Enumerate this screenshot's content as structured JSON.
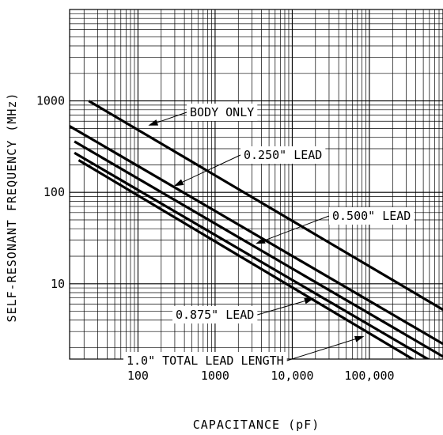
{
  "chart_data": {
    "type": "line",
    "title": "",
    "xlabel": "CAPACITANCE (pF)",
    "ylabel": "SELF-RESONANT FREQUENCY (MHz)",
    "x_scale": "log",
    "y_scale": "log",
    "xlim": [
      13,
      900000
    ],
    "ylim": [
      1.5,
      10000
    ],
    "grid": true,
    "x_ticks": [
      {
        "value": 100,
        "label": "100"
      },
      {
        "value": 1000,
        "label": "1000"
      },
      {
        "value": 10000,
        "label": "10,000"
      },
      {
        "value": 100000,
        "label": "100,000"
      }
    ],
    "y_ticks": [
      {
        "value": 10,
        "label": "10"
      },
      {
        "value": 100,
        "label": "100"
      },
      {
        "value": 1000,
        "label": "1000"
      }
    ],
    "series": [
      {
        "name": "BODY ONLY",
        "x": [
          23,
          900000
        ],
        "y": [
          1000,
          5.2
        ]
      },
      {
        "name": "0.250\" LEAD",
        "x": [
          13,
          900000
        ],
        "y": [
          530,
          2.2
        ]
      },
      {
        "name": "0.500\" LEAD",
        "x": [
          15,
          900000
        ],
        "y": [
          360,
          1.6
        ]
      },
      {
        "name": "0.875\" LEAD",
        "x": [
          15,
          900000
        ],
        "y": [
          270,
          1.2
        ]
      },
      {
        "name": "1.0\" TOTAL LEAD LENGTH",
        "x": [
          17,
          900000
        ],
        "y": [
          225,
          0.95
        ]
      }
    ],
    "annotations": [
      {
        "text": "BODY ONLY",
        "series": 0,
        "x": 130,
        "y": 530
      },
      {
        "text": "0.250\" LEAD",
        "series": 1,
        "x": 280,
        "y": 115
      },
      {
        "text": "0.500\" LEAD",
        "series": 2,
        "x": 3200,
        "y": 27
      },
      {
        "text": "0.875\" LEAD",
        "series": 3,
        "x": 20000,
        "y": 7.0
      },
      {
        "text": "1.0\" TOTAL LEAD LENGTH",
        "series": 4,
        "x": 90000,
        "y": 2.7
      }
    ]
  }
}
